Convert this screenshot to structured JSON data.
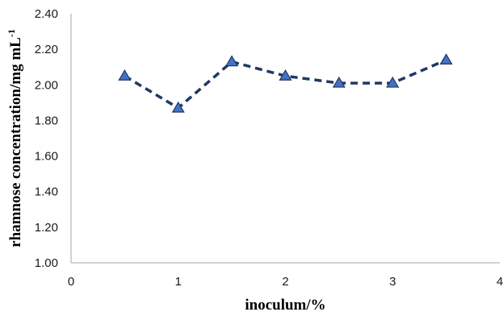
{
  "chart_data": {
    "type": "line",
    "title": "",
    "xlabel": "inoculum/%",
    "ylabel": "rhamnose concentration/mg mL",
    "ylabel_superscript": "-1",
    "xlim": [
      0,
      4
    ],
    "ylim": [
      1.0,
      2.4
    ],
    "x_ticks": [
      "0",
      "1",
      "2",
      "3",
      "4"
    ],
    "y_ticks": [
      "1.00",
      "1.20",
      "1.40",
      "1.60",
      "1.80",
      "2.00",
      "2.20",
      "2.40"
    ],
    "grid": false,
    "legend": "none",
    "series": [
      {
        "x": [
          0.5,
          1.0,
          1.5,
          2.0,
          2.5,
          3.0,
          3.5
        ],
        "y": [
          2.05,
          1.87,
          2.13,
          2.05,
          2.01,
          2.01,
          2.14
        ],
        "line_color": "#1f3864",
        "line_style": "dashed",
        "marker": "triangle",
        "marker_color": "#4472c4"
      }
    ]
  }
}
